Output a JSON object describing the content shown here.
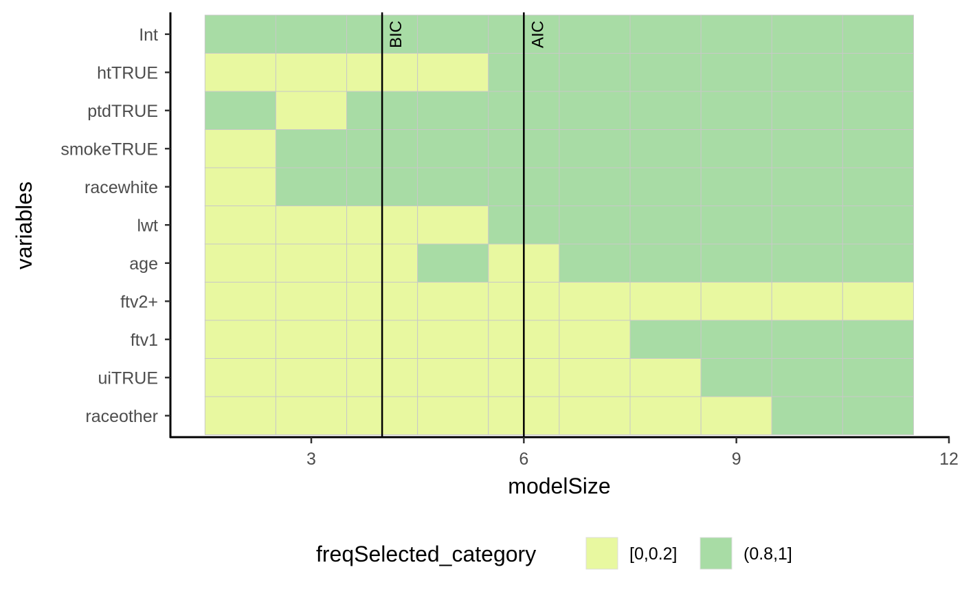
{
  "chart_data": {
    "type": "heatmap",
    "xlabel": "modelSize",
    "ylabel": "variables",
    "x": [
      2,
      3,
      4,
      5,
      6,
      7,
      8,
      9,
      10,
      11
    ],
    "xlim": [
      1.5,
      12
    ],
    "xticks": [
      3,
      6,
      9,
      12
    ],
    "xtick_labels": [
      "3",
      "6",
      "9",
      "12"
    ],
    "y_categories": [
      "Int",
      "htTRUE",
      "ptdTRUE",
      "smokeTRUE",
      "racewhite",
      "lwt",
      "age",
      "ftv2+",
      "ftv1",
      "uiTRUE",
      "raceother"
    ],
    "categories_legend": [
      "[0,0.2]",
      "(0.8,1]"
    ],
    "legend_title": "freqSelected_category",
    "legend_position": "bottom",
    "colors": {
      "[0,0.2]": "#e8f8a0",
      "(0.8,1]": "#a8dca5",
      "grid": "#c8c8c8"
    },
    "grid": false,
    "values": [
      [
        1,
        1,
        1,
        1,
        1,
        1,
        1,
        1,
        1,
        1
      ],
      [
        0,
        0,
        0,
        0,
        1,
        1,
        1,
        1,
        1,
        1
      ],
      [
        1,
        0,
        1,
        1,
        1,
        1,
        1,
        1,
        1,
        1
      ],
      [
        0,
        1,
        1,
        1,
        1,
        1,
        1,
        1,
        1,
        1
      ],
      [
        0,
        1,
        1,
        1,
        1,
        1,
        1,
        1,
        1,
        1
      ],
      [
        0,
        0,
        0,
        0,
        1,
        1,
        1,
        1,
        1,
        1
      ],
      [
        0,
        0,
        0,
        1,
        0,
        1,
        1,
        1,
        1,
        1
      ],
      [
        0,
        0,
        0,
        0,
        0,
        0,
        0,
        0,
        0,
        0
      ],
      [
        0,
        0,
        0,
        0,
        0,
        0,
        1,
        1,
        1,
        1
      ],
      [
        0,
        0,
        0,
        0,
        0,
        0,
        0,
        1,
        1,
        1
      ],
      [
        0,
        0,
        0,
        0,
        0,
        0,
        0,
        0,
        1,
        1
      ]
    ],
    "annotations": [
      {
        "label": "BIC",
        "x": 4
      },
      {
        "label": "AIC",
        "x": 6
      }
    ]
  }
}
